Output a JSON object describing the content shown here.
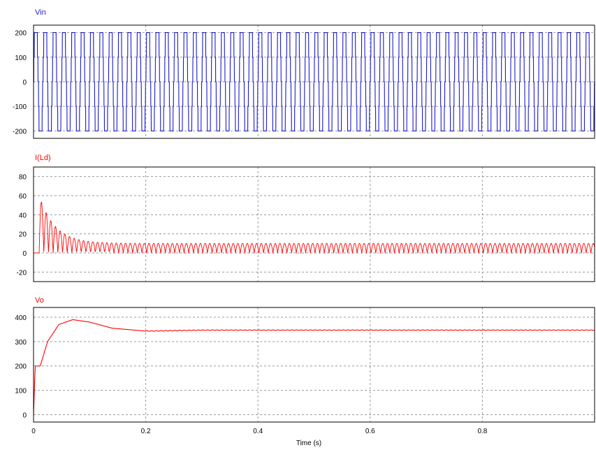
{
  "chart_data": [
    {
      "type": "line",
      "title": "Vin",
      "xlabel": "",
      "ylabel": "",
      "xlim": [
        0,
        1.0
      ],
      "ylim": [
        -230,
        230
      ],
      "x_ticks": [
        0,
        0.2,
        0.4,
        0.6,
        0.8
      ],
      "y_ticks": [
        -200,
        -100,
        0,
        100,
        200
      ],
      "y_tick_labels": [
        "-200",
        "-100",
        "0",
        "100",
        "200"
      ],
      "grid": true,
      "series": [
        {
          "shape": "stepped square wave (quasi-sine), amplitude 200, frequency 60 Hz",
          "amplitude": 200,
          "frequency_hz": 60,
          "color": "#1c1ccf"
        }
      ]
    },
    {
      "type": "line",
      "title": "I(Ld)",
      "xlabel": "",
      "ylabel": "",
      "xlim": [
        0,
        1.0
      ],
      "ylim": [
        -30,
        90
      ],
      "x_ticks": [
        0,
        0.2,
        0.4,
        0.6,
        0.8
      ],
      "y_ticks": [
        -20,
        0,
        20,
        40,
        60,
        80
      ],
      "y_tick_labels": [
        "-20",
        "0",
        "20",
        "40",
        "60",
        "80"
      ],
      "grid": true,
      "series": [
        {
          "shape": "rectified pulses starting at 0.01 s with peak ~60, decaying to steady ripple 0–10",
          "peak": 60,
          "steady_ripple": [
            0,
            10
          ],
          "color": "#ff0000"
        }
      ]
    },
    {
      "type": "line",
      "title": "Vo",
      "xlabel": "Time (s)",
      "ylabel": "",
      "xlim": [
        0,
        1.0
      ],
      "ylim": [
        -30,
        440
      ],
      "x_ticks": [
        0,
        0.2,
        0.4,
        0.6,
        0.8
      ],
      "x_tick_labels": [
        "0",
        "0.2",
        "0.4",
        "0.6",
        "0.8"
      ],
      "y_ticks": [
        0,
        100,
        200,
        300,
        400
      ],
      "y_tick_labels": [
        "0",
        "100",
        "200",
        "300",
        "400"
      ],
      "grid": true,
      "series": [
        {
          "shape": "step to ~200 then overshoot to ~390 near 0.07 s, settling to ~347",
          "points": [
            [
              0,
              0
            ],
            [
              0.003,
              200
            ],
            [
              0.012,
              200
            ],
            [
              0.025,
              300
            ],
            [
              0.045,
              370
            ],
            [
              0.07,
              390
            ],
            [
              0.1,
              380
            ],
            [
              0.14,
              355
            ],
            [
              0.2,
              343
            ],
            [
              0.25,
              345
            ],
            [
              0.3,
              347
            ],
            [
              1.0,
              347
            ]
          ],
          "color": "#ff0000"
        }
      ]
    }
  ]
}
